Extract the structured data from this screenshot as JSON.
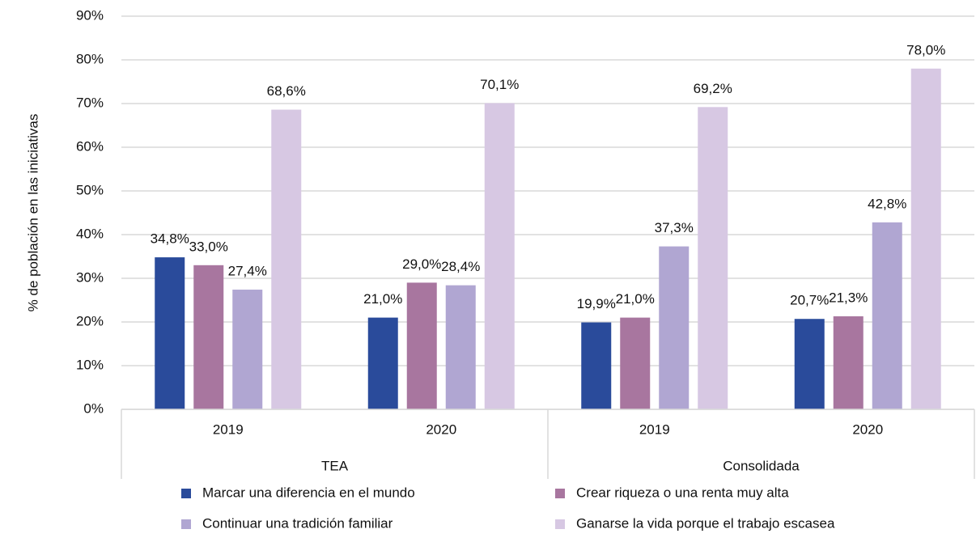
{
  "chart_data": {
    "type": "bar",
    "y_label": "% de población en las iniciativas",
    "categories": [
      "2019",
      "2020",
      "2019",
      "2020"
    ],
    "groups": [
      {
        "label": "TEA",
        "span": 2
      },
      {
        "label": "Consolidada",
        "span": 2
      }
    ],
    "series": [
      {
        "name": "Marcar una diferencia en el mundo",
        "color": "#2a4b9b",
        "values": [
          34.8,
          21.0,
          19.9,
          20.7
        ],
        "value_labels": [
          "34,8%",
          "21,0%",
          "19,9%",
          "20,7%"
        ]
      },
      {
        "name": "Crear riqueza o una renta muy alta",
        "color": "#a8769f",
        "values": [
          33.0,
          29.0,
          21.0,
          21.3
        ],
        "value_labels": [
          "33,0%",
          "29,0%",
          "21,0%",
          "21,3%"
        ]
      },
      {
        "name": "Continuar una tradición familiar",
        "color": "#b0a6d2",
        "values": [
          27.4,
          28.4,
          37.3,
          42.8
        ],
        "value_labels": [
          "27,4%",
          "28,4%",
          "37,3%",
          "42,8%"
        ]
      },
      {
        "name": "Ganarse la vida porque el trabajo escasea",
        "color": "#d7c8e3",
        "values": [
          68.6,
          70.1,
          69.2,
          78.0
        ],
        "value_labels": [
          "68,6%",
          "70,1%",
          "69,2%",
          "78,0%"
        ]
      }
    ],
    "ylim": [
      0,
      90
    ],
    "yticks": [
      {
        "value": 0,
        "label": "0%"
      },
      {
        "value": 10,
        "label": "10%"
      },
      {
        "value": 20,
        "label": "20%"
      },
      {
        "value": 30,
        "label": "30%"
      },
      {
        "value": 40,
        "label": "40%"
      },
      {
        "value": 50,
        "label": "50%"
      },
      {
        "value": 60,
        "label": "60%"
      },
      {
        "value": 70,
        "label": "70%"
      },
      {
        "value": 80,
        "label": "80%"
      },
      {
        "value": 90,
        "label": "90%"
      }
    ],
    "grid": true,
    "legend": "bottom"
  }
}
